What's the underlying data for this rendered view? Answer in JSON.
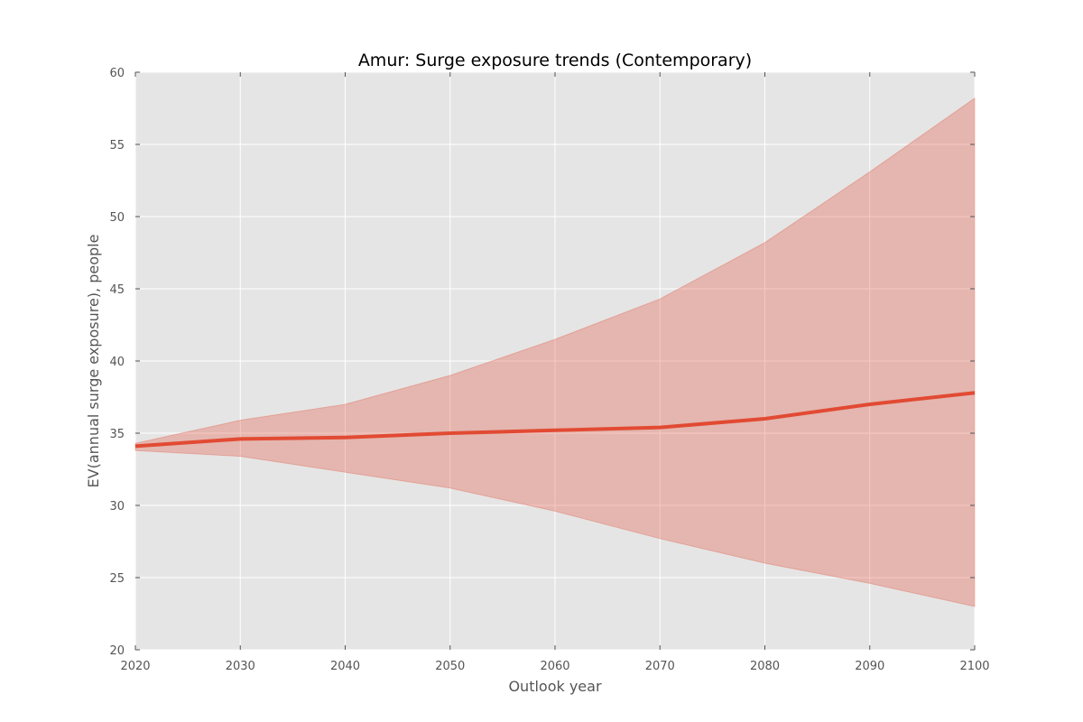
{
  "chart_data": {
    "type": "area",
    "title": "Amur: Surge exposure trends (Contemporary)",
    "xlabel": "Outlook year",
    "ylabel": "EV(annual surge exposure), people",
    "xlim": [
      2020,
      2100
    ],
    "ylim": [
      20,
      60
    ],
    "x_ticks": [
      2020,
      2030,
      2040,
      2050,
      2060,
      2070,
      2080,
      2090,
      2100
    ],
    "y_ticks": [
      20,
      25,
      30,
      35,
      40,
      45,
      50,
      55,
      60
    ],
    "grid": true,
    "x": [
      2020,
      2030,
      2040,
      2050,
      2060,
      2070,
      2080,
      2090,
      2100
    ],
    "series": [
      {
        "values": [
          34.1,
          34.6,
          34.7,
          35.0,
          35.2,
          35.4,
          36.0,
          37.0,
          37.8
        ],
        "lower": [
          33.8,
          33.4,
          32.3,
          31.2,
          29.6,
          27.7,
          26.0,
          24.6,
          23.0
        ],
        "upper": [
          34.3,
          35.9,
          37.0,
          39.0,
          41.5,
          44.3,
          48.2,
          53.1,
          58.2
        ],
        "line_color": "#E24A33",
        "band_color": "#E24A33"
      }
    ],
    "background_color": "#E5E5E5",
    "grid_color": "#FFFFFF"
  }
}
